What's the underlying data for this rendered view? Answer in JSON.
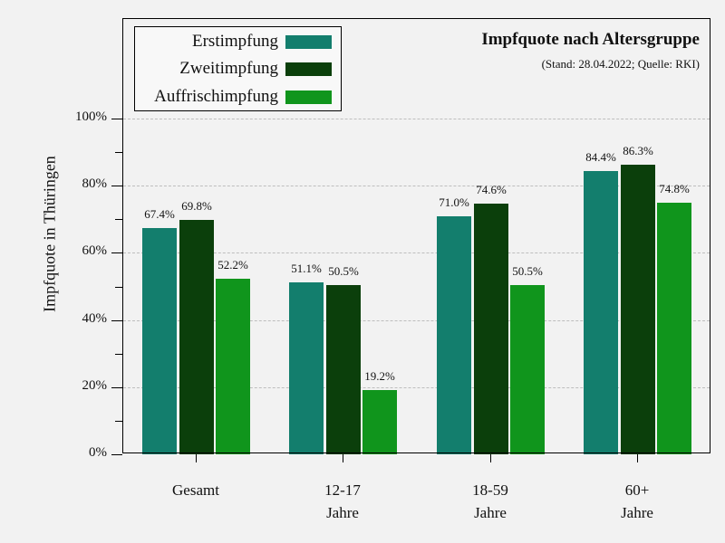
{
  "chart_data": {
    "type": "bar",
    "title": "Impfquote nach Altersgruppe",
    "subtitle": "(Stand: 28.04.2022; Quelle: RKI)",
    "xlabel": "",
    "ylabel": "Impfquote in Thüringen",
    "ylim": [
      0,
      100
    ],
    "yticks": [
      "0%",
      "20%",
      "40%",
      "60%",
      "80%",
      "100%"
    ],
    "grid": true,
    "legend_position": "upper left",
    "categories": [
      "Gesamt",
      "12-17 Jahre",
      "18-59 Jahre",
      "60+ Jahre"
    ],
    "category_lines": [
      [
        "Gesamt",
        ""
      ],
      [
        "12-17",
        "Jahre"
      ],
      [
        "18-59",
        "Jahre"
      ],
      [
        "60+",
        "Jahre"
      ]
    ],
    "series": [
      {
        "name": "Erstimpfung",
        "color": "#137e6d",
        "values": [
          67.4,
          51.1,
          71.0,
          84.4
        ],
        "labels": [
          "67.4%",
          "51.1%",
          "71.0%",
          "84.4%"
        ]
      },
      {
        "name": "Zweitimpfung",
        "color": "#0b3f0b",
        "values": [
          69.8,
          50.5,
          74.6,
          86.3
        ],
        "labels": [
          "69.8%",
          "50.5%",
          "74.6%",
          "86.3%"
        ]
      },
      {
        "name": "Auffrischimpfung",
        "color": "#10951c",
        "values": [
          52.2,
          19.2,
          50.5,
          74.8
        ],
        "labels": [
          "52.2%",
          "19.2%",
          "50.5%",
          "74.8%"
        ]
      }
    ]
  },
  "legend": {
    "items": [
      "Erstimpfung",
      "Zweitimpfung",
      "Auffrischimpfung"
    ]
  }
}
